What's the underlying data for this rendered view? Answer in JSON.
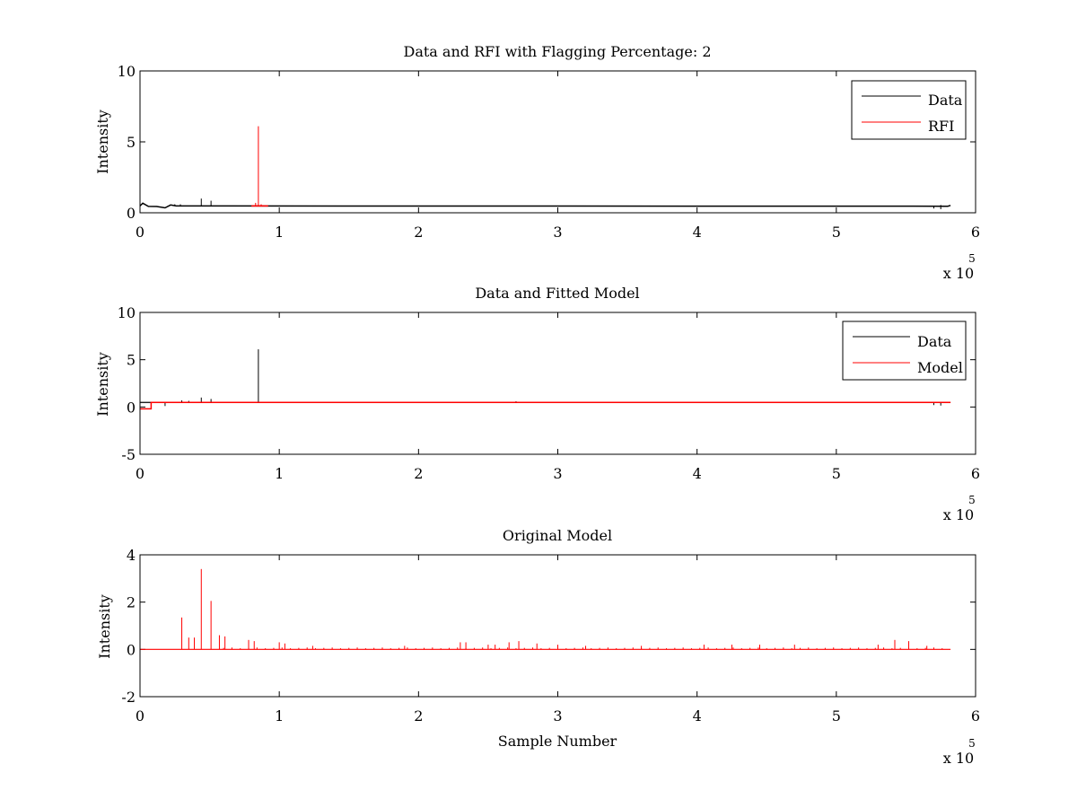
{
  "figure": {
    "background": "#ffffff",
    "colors": {
      "data": "#000000",
      "rfi": "#ff0000",
      "model": "#ff0000",
      "axes": "#000000"
    }
  },
  "chart_data": [
    {
      "type": "line",
      "title": "Data and RFI with Flagging Percentage: 2",
      "xlabel": "",
      "ylabel": "Intensity",
      "xlim": [
        0,
        600000
      ],
      "ylim": [
        0,
        10
      ],
      "xticks": [
        0,
        100000,
        200000,
        300000,
        400000,
        500000,
        600000
      ],
      "xtick_labels": [
        "0",
        "1",
        "2",
        "3",
        "4",
        "5",
        "6"
      ],
      "yticks": [
        0,
        5,
        10
      ],
      "ytick_labels": [
        "0",
        "5",
        "10"
      ],
      "x_multiplier": {
        "base": "x 10",
        "exponent": "5"
      },
      "legend": {
        "position": "top-right",
        "entries": [
          "Data",
          "RFI"
        ]
      },
      "grid": false,
      "series": [
        {
          "name": "Data",
          "color": "#000000",
          "baseline": 0.48,
          "x_end": 582000,
          "points": [
            [
              0,
              0.48
            ],
            [
              2000,
              0.68
            ],
            [
              6000,
              0.45
            ],
            [
              12000,
              0.44
            ],
            [
              18000,
              0.35
            ],
            [
              22000,
              0.55
            ],
            [
              26000,
              0.48
            ],
            [
              580000,
              0.46
            ],
            [
              582000,
              0.52
            ]
          ],
          "spikes": [
            [
              44000,
              1.0
            ],
            [
              51000,
              0.85
            ],
            [
              25000,
              0.6
            ],
            [
              29000,
              0.6
            ],
            [
              575000,
              0.55
            ]
          ],
          "dips": [
            [
              570000,
              0.3
            ],
            [
              575000,
              0.25
            ]
          ]
        },
        {
          "name": "RFI",
          "color": "#ff0000",
          "baseline": 0.48,
          "x_range": [
            80000,
            92000
          ],
          "spikes": [
            [
              85000,
              6.1
            ],
            [
              83000,
              0.7
            ],
            [
              87000,
              0.6
            ]
          ]
        }
      ]
    },
    {
      "type": "line",
      "title": "Data and Fitted Model",
      "xlabel": "",
      "ylabel": "Intensity",
      "xlim": [
        0,
        600000
      ],
      "ylim": [
        -5,
        10
      ],
      "xticks": [
        0,
        100000,
        200000,
        300000,
        400000,
        500000,
        600000
      ],
      "xtick_labels": [
        "0",
        "1",
        "2",
        "3",
        "4",
        "5",
        "6"
      ],
      "yticks": [
        -5,
        0,
        5,
        10
      ],
      "ytick_labels": [
        "-5",
        "0",
        "5",
        "10"
      ],
      "x_multiplier": {
        "base": "x 10",
        "exponent": "5"
      },
      "legend": {
        "position": "top-right",
        "entries": [
          "Data",
          "Model"
        ]
      },
      "grid": false,
      "series": [
        {
          "name": "Data",
          "color": "#000000",
          "baseline": 0.48,
          "x_end": 582000,
          "spikes": [
            [
              85000,
              6.1
            ],
            [
              44000,
              1.0
            ],
            [
              51000,
              0.85
            ],
            [
              30000,
              0.7
            ],
            [
              35000,
              0.65
            ],
            [
              270000,
              0.6
            ]
          ],
          "dips": [
            [
              18000,
              0.1
            ],
            [
              570000,
              0.2
            ],
            [
              575000,
              0.15
            ]
          ]
        },
        {
          "name": "Model",
          "color": "#ff0000",
          "baseline": 0.48,
          "x_end": 582000,
          "step": [
            [
              0,
              -0.2
            ],
            [
              8000,
              -0.2
            ],
            [
              8000,
              0.48
            ]
          ]
        }
      ]
    },
    {
      "type": "line",
      "title": "Original Model",
      "xlabel": "Sample Number",
      "ylabel": "Intensity",
      "xlim": [
        0,
        600000
      ],
      "ylim": [
        -2,
        4
      ],
      "xticks": [
        0,
        100000,
        200000,
        300000,
        400000,
        500000,
        600000
      ],
      "xtick_labels": [
        "0",
        "1",
        "2",
        "3",
        "4",
        "5",
        "6"
      ],
      "yticks": [
        -2,
        0,
        2,
        4
      ],
      "ytick_labels": [
        "-2",
        "0",
        "2",
        "4"
      ],
      "x_multiplier": {
        "base": "x 10",
        "exponent": "5"
      },
      "grid": false,
      "series": [
        {
          "color": "#ff0000",
          "baseline": 0.0,
          "x_end": 582000,
          "spikes": [
            [
              30000,
              1.35
            ],
            [
              35000,
              0.5
            ],
            [
              39000,
              0.5
            ],
            [
              44000,
              3.4
            ],
            [
              51000,
              2.05
            ],
            [
              57000,
              0.6
            ],
            [
              61000,
              0.55
            ],
            [
              78000,
              0.4
            ],
            [
              82000,
              0.35
            ],
            [
              100000,
              0.3
            ],
            [
              104000,
              0.25
            ],
            [
              124000,
              0.15
            ],
            [
              190000,
              0.15
            ],
            [
              230000,
              0.3
            ],
            [
              234000,
              0.3
            ],
            [
              250000,
              0.2
            ],
            [
              255000,
              0.2
            ],
            [
              265000,
              0.3
            ],
            [
              272000,
              0.35
            ],
            [
              285000,
              0.25
            ],
            [
              300000,
              0.2
            ],
            [
              320000,
              0.15
            ],
            [
              360000,
              0.15
            ],
            [
              405000,
              0.2
            ],
            [
              425000,
              0.2
            ],
            [
              445000,
              0.2
            ],
            [
              470000,
              0.2
            ],
            [
              530000,
              0.2
            ],
            [
              542000,
              0.4
            ],
            [
              552000,
              0.35
            ],
            [
              565000,
              0.15
            ]
          ],
          "small_spikes_every": 6000,
          "small_spike_height": 0.08
        }
      ]
    }
  ]
}
